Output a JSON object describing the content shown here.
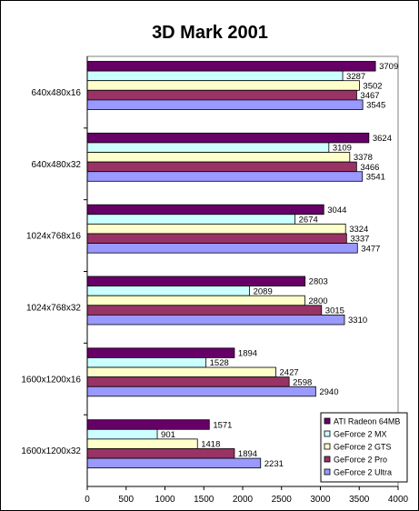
{
  "chart_data": {
    "type": "bar",
    "orientation": "horizontal",
    "title": "3D Mark 2001",
    "categories": [
      "640x480x16",
      "640x480x32",
      "1024x768x16",
      "1024x768x32",
      "1600x1200x16",
      "1600x1200x32"
    ],
    "series": [
      {
        "name": "ATI Radeon 64MB",
        "color": "#660066",
        "values": [
          3709,
          3624,
          3044,
          2803,
          1894,
          1571
        ]
      },
      {
        "name": "GeForce 2 MX",
        "color": "#ccffff",
        "values": [
          3287,
          3109,
          2674,
          2089,
          1528,
          901
        ]
      },
      {
        "name": "GeForce 2 GTS",
        "color": "#ffffcc",
        "values": [
          3502,
          3378,
          3324,
          2800,
          2427,
          1418
        ]
      },
      {
        "name": "GeForce 2 Pro",
        "color": "#993366",
        "values": [
          3467,
          3466,
          3337,
          3015,
          2598,
          1894
        ]
      },
      {
        "name": "GeForce 2 Ultra",
        "color": "#9999ff",
        "values": [
          3545,
          3541,
          3477,
          3310,
          2940,
          2231
        ]
      }
    ],
    "xlim": [
      0,
      4000
    ],
    "xticks": [
      "0",
      "500",
      "1000",
      "1500",
      "2000",
      "2500",
      "3000",
      "3500",
      "4000"
    ],
    "grid": false,
    "legend_position": "bottom-right"
  }
}
